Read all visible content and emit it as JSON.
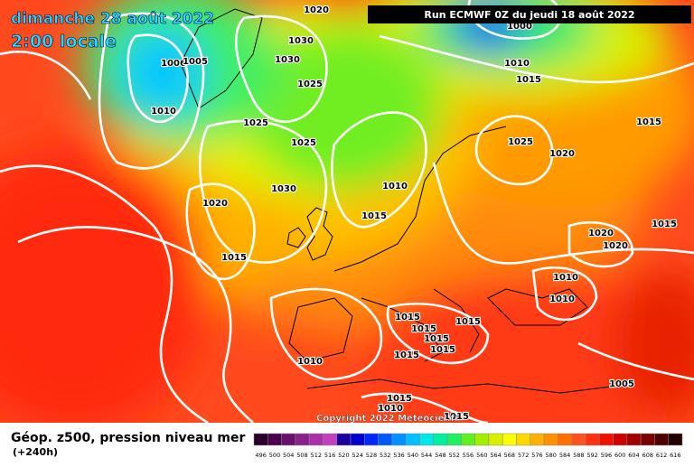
{
  "header": {
    "date": "dimanche 28 août 2022",
    "time": "2:00 locale",
    "run": "Run ECMWF 0Z du jeudi 18 août 2022"
  },
  "isobar_labels": [
    "1020",
    "1000",
    "1030",
    "1030",
    "1006",
    "1005",
    "1010",
    "1015",
    "1025",
    "1010",
    "1025",
    "1015",
    "1025",
    "1025",
    "1020",
    "1030",
    "1010",
    "1020",
    "1015",
    "1015",
    "1020",
    "1020",
    "1015",
    "1010",
    "1010",
    "1015",
    "1015",
    "1015",
    "1015",
    "1015",
    "1010",
    "1015",
    "1005",
    "1015",
    "1010",
    "1015"
  ],
  "copyright": "Copyright 2022 Meteociel.fr",
  "footer": {
    "title": "Géop. z500, pression niveau mer",
    "lead": "(+240h)"
  },
  "scale": {
    "labels": [
      "496",
      "500",
      "504",
      "508",
      "512",
      "516",
      "520",
      "524",
      "528",
      "532",
      "536",
      "540",
      "544",
      "548",
      "552",
      "556",
      "560",
      "564",
      "568",
      "572",
      "576",
      "580",
      "584",
      "588",
      "592",
      "596",
      "600",
      "604",
      "608",
      "612",
      "616"
    ],
    "colors": [
      "#2a002a",
      "#4a004a",
      "#6a106a",
      "#8a208a",
      "#aa30aa",
      "#c040c0",
      "#1c00a0",
      "#0000d0",
      "#0028ff",
      "#0058ff",
      "#0090ff",
      "#00c0ff",
      "#00e8e8",
      "#00f0a0",
      "#20f060",
      "#60f020",
      "#a0f000",
      "#d8f000",
      "#ffff00",
      "#ffd800",
      "#ffb000",
      "#ff9000",
      "#ff7000",
      "#ff5020",
      "#ff3010",
      "#f01000",
      "#d00000",
      "#a00000",
      "#780000",
      "#500000",
      "#200000"
    ]
  }
}
